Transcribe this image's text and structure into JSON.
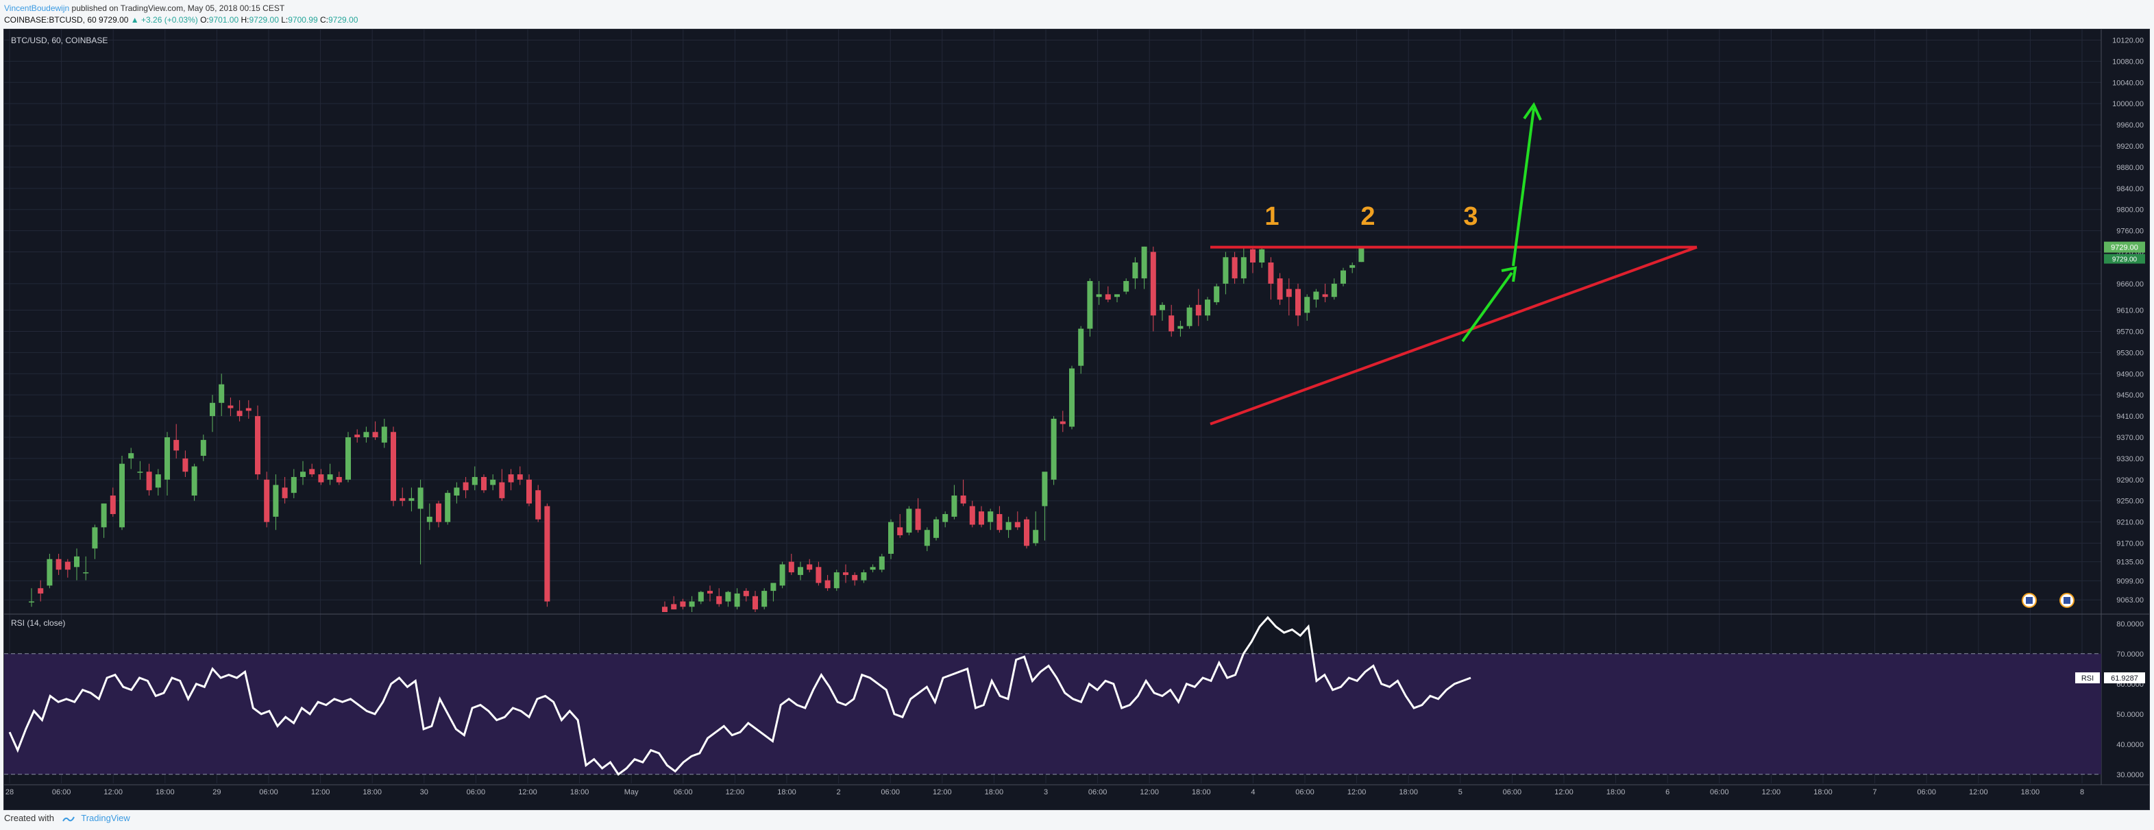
{
  "header": {
    "author": "VincentBoudewijn",
    "published_text": "published on TradingView.com, May 05, 2018 00:15 CEST",
    "symbol_line": "COINBASE:BTCUSD, 60",
    "last_price": "9729.00",
    "change": "+3.26 (+0.03%)",
    "o_label": "O:",
    "o_value": "9701.00",
    "h_label": "H:",
    "h_value": "9729.00",
    "l_label": "L:",
    "l_value": "9700.99",
    "c_label": "C:",
    "c_value": "9729.00"
  },
  "footer": {
    "created_with": "Created with",
    "brand": "TradingView"
  },
  "colors": {
    "background": "#131722",
    "up": "#5fb55f",
    "down": "#e0475a",
    "rsi_band": "#2a1e4a",
    "annotation_red": "#e0202e",
    "annotation_green": "#22dd22",
    "annotation_orange": "#f0a020",
    "grid": "#232838"
  },
  "chart_data": {
    "type": "candlestick",
    "price_pane": {
      "title": "BTC/USD, 60, COINBASE",
      "ylim": [
        9040,
        10140
      ],
      "y_ticks": [
        "10120.00",
        "10080.00",
        "10040.00",
        "10000.00",
        "9960.00",
        "9920.00",
        "9880.00",
        "9840.00",
        "9800.00",
        "9760.00",
        "9720.00",
        "9660.00",
        "9610.00",
        "9570.00",
        "9530.00",
        "9490.00",
        "9450.00",
        "9410.00",
        "9370.00",
        "9330.00",
        "9290.00",
        "9250.00",
        "9210.00",
        "9170.00",
        "9135.00",
        "9099.00",
        "9063.00"
      ],
      "y_tick_values": [
        10120,
        10080,
        10040,
        10000,
        9960,
        9920,
        9880,
        9840,
        9800,
        9760,
        9720,
        9660,
        9610,
        9570,
        9530,
        9490,
        9450,
        9410,
        9370,
        9330,
        9290,
        9250,
        9210,
        9170,
        9135,
        9099,
        9063
      ],
      "last_price_label": "9729.00",
      "secondary_price_label": "9729.00",
      "candles": [
        [
          9060,
          9085,
          9050,
          9060
        ],
        [
          9085,
          9100,
          9060,
          9075
        ],
        [
          9090,
          9150,
          9085,
          9140
        ],
        [
          9140,
          9150,
          9110,
          9120
        ],
        [
          9135,
          9140,
          9105,
          9120
        ],
        [
          9125,
          9160,
          9100,
          9145
        ],
        [
          9115,
          9145,
          9100,
          9115
        ],
        [
          9160,
          9205,
          9140,
          9200
        ],
        [
          9200,
          9245,
          9180,
          9245
        ],
        [
          9260,
          9275,
          9220,
          9225
        ],
        [
          9200,
          9335,
          9195,
          9320
        ],
        [
          9330,
          9350,
          9310,
          9340
        ],
        [
          9305,
          9325,
          9290,
          9305
        ],
        [
          9305,
          9320,
          9260,
          9270
        ],
        [
          9275,
          9310,
          9260,
          9300
        ],
        [
          9290,
          9380,
          9260,
          9370
        ],
        [
          9365,
          9395,
          9330,
          9345
        ],
        [
          9330,
          9345,
          9295,
          9305
        ],
        [
          9260,
          9320,
          9250,
          9315
        ],
        [
          9335,
          9375,
          9325,
          9365
        ],
        [
          9410,
          9450,
          9380,
          9435
        ],
        [
          9435,
          9490,
          9410,
          9470
        ],
        [
          9430,
          9445,
          9410,
          9425
        ],
        [
          9420,
          9440,
          9400,
          9410
        ],
        [
          9425,
          9440,
          9405,
          9420
        ],
        [
          9410,
          9430,
          9290,
          9300
        ],
        [
          9290,
          9305,
          9200,
          9210
        ],
        [
          9220,
          9300,
          9195,
          9280
        ],
        [
          9275,
          9295,
          9245,
          9255
        ],
        [
          9265,
          9310,
          9255,
          9295
        ],
        [
          9295,
          9325,
          9280,
          9305
        ],
        [
          9310,
          9320,
          9295,
          9300
        ],
        [
          9300,
          9310,
          9280,
          9285
        ],
        [
          9290,
          9320,
          9280,
          9300
        ],
        [
          9295,
          9305,
          9280,
          9285
        ],
        [
          9290,
          9380,
          9285,
          9370
        ],
        [
          9375,
          9385,
          9360,
          9370
        ],
        [
          9370,
          9390,
          9360,
          9380
        ],
        [
          9380,
          9400,
          9365,
          9370
        ],
        [
          9360,
          9405,
          9350,
          9390
        ],
        [
          9380,
          9390,
          9240,
          9250
        ],
        [
          9255,
          9275,
          9240,
          9250
        ],
        [
          9250,
          9275,
          9230,
          9255
        ],
        [
          9235,
          9290,
          9130,
          9275
        ],
        [
          9210,
          9245,
          9195,
          9220
        ],
        [
          9245,
          9250,
          9200,
          9210
        ],
        [
          9210,
          9270,
          9205,
          9265
        ],
        [
          9260,
          9285,
          9245,
          9275
        ],
        [
          9285,
          9295,
          9255,
          9270
        ],
        [
          9280,
          9315,
          9270,
          9295
        ],
        [
          9295,
          9300,
          9265,
          9270
        ],
        [
          9280,
          9300,
          9270,
          9290
        ],
        [
          9285,
          9310,
          9250,
          9255
        ],
        [
          9300,
          9310,
          9270,
          9285
        ],
        [
          9300,
          9315,
          9280,
          9290
        ],
        [
          9290,
          9300,
          9240,
          9245
        ],
        [
          9270,
          9280,
          9210,
          9215
        ],
        [
          9240,
          9245,
          9050,
          9060
        ]
      ],
      "candles_part2": [
        [
          9050,
          9060,
          9040,
          9040
        ],
        [
          9055,
          9070,
          9045,
          9045
        ],
        [
          9060,
          9065,
          9045,
          9050
        ],
        [
          9050,
          9070,
          9040,
          9060
        ],
        [
          9060,
          9080,
          9055,
          9078
        ],
        [
          9080,
          9090,
          9060,
          9075
        ],
        [
          9070,
          9085,
          9050,
          9055
        ],
        [
          9060,
          9080,
          9050,
          9078
        ],
        [
          9050,
          9085,
          9045,
          9075
        ],
        [
          9080,
          9085,
          9060,
          9070
        ],
        [
          9070,
          9080,
          9040,
          9045
        ],
        [
          9050,
          9085,
          9045,
          9080
        ],
        [
          9080,
          9095,
          9060,
          9095
        ],
        [
          9090,
          9135,
          9085,
          9130
        ],
        [
          9135,
          9150,
          9110,
          9115
        ],
        [
          9110,
          9135,
          9100,
          9125
        ],
        [
          9130,
          9140,
          9115,
          9120
        ],
        [
          9125,
          9135,
          9090,
          9095
        ],
        [
          9100,
          9110,
          9080,
          9085
        ],
        [
          9085,
          9120,
          9080,
          9115
        ],
        [
          9115,
          9130,
          9095,
          9110
        ],
        [
          9110,
          9115,
          9090,
          9100
        ],
        [
          9100,
          9120,
          9095,
          9115
        ],
        [
          9120,
          9130,
          9115,
          9125
        ],
        [
          9120,
          9150,
          9115,
          9145
        ],
        [
          9150,
          9215,
          9140,
          9210
        ],
        [
          9200,
          9225,
          9180,
          9185
        ],
        [
          9190,
          9240,
          9185,
          9235
        ],
        [
          9235,
          9255,
          9190,
          9195
        ],
        [
          9165,
          9200,
          9155,
          9195
        ],
        [
          9180,
          9220,
          9175,
          9215
        ],
        [
          9210,
          9230,
          9200,
          9225
        ],
        [
          9220,
          9280,
          9215,
          9260
        ],
        [
          9260,
          9290,
          9240,
          9245
        ],
        [
          9240,
          9250,
          9200,
          9205
        ],
        [
          9230,
          9240,
          9200,
          9205
        ],
        [
          9210,
          9235,
          9195,
          9230
        ],
        [
          9225,
          9240,
          9190,
          9195
        ],
        [
          9195,
          9220,
          9180,
          9210
        ],
        [
          9210,
          9230,
          9195,
          9200
        ],
        [
          9215,
          9220,
          9160,
          9165
        ],
        [
          9170,
          9230,
          9165,
          9195
        ],
        [
          9240,
          9300,
          9175,
          9305
        ],
        [
          9290,
          9410,
          9280,
          9405
        ],
        [
          9400,
          9420,
          9380,
          9395
        ],
        [
          9390,
          9505,
          9385,
          9500
        ],
        [
          9505,
          9580,
          9490,
          9575
        ],
        [
          9575,
          9670,
          9560,
          9665
        ],
        [
          9635,
          9665,
          9620,
          9640
        ],
        [
          9640,
          9655,
          9625,
          9630
        ],
        [
          9635,
          9640,
          9625,
          9640
        ],
        [
          9645,
          9670,
          9640,
          9665
        ],
        [
          9670,
          9710,
          9650,
          9700
        ],
        [
          9670,
          9730,
          9650,
          9730
        ],
        [
          9720,
          9730,
          9570,
          9600
        ],
        [
          9610,
          9625,
          9590,
          9620
        ],
        [
          9600,
          9620,
          9560,
          9570
        ],
        [
          9575,
          9590,
          9560,
          9580
        ],
        [
          9580,
          9620,
          9575,
          9615
        ],
        [
          9620,
          9650,
          9580,
          9600
        ],
        [
          9600,
          9635,
          9590,
          9630
        ],
        [
          9625,
          9660,
          9620,
          9655
        ],
        [
          9660,
          9720,
          9640,
          9710
        ],
        [
          9710,
          9720,
          9660,
          9670
        ],
        [
          9670,
          9730,
          9660,
          9710
        ],
        [
          9725,
          9730,
          9680,
          9700
        ],
        [
          9700,
          9730,
          9690,
          9725
        ],
        [
          9700,
          9710,
          9630,
          9660
        ],
        [
          9670,
          9680,
          9620,
          9630
        ],
        [
          9650,
          9670,
          9600,
          9635
        ],
        [
          9650,
          9660,
          9580,
          9600
        ],
        [
          9605,
          9640,
          9590,
          9635
        ],
        [
          9630,
          9650,
          9615,
          9645
        ],
        [
          9640,
          9660,
          9625,
          9635
        ],
        [
          9635,
          9670,
          9630,
          9660
        ],
        [
          9660,
          9690,
          9655,
          9685
        ],
        [
          9690,
          9700,
          9680,
          9695
        ],
        [
          9701,
          9729,
          9700.99,
          9729
        ]
      ]
    },
    "rsi_pane": {
      "title": "RSI (14, close)",
      "ylim": [
        27,
        82
      ],
      "y_ticks": [
        "80.0000",
        "70.0000",
        "60.0000",
        "50.0000",
        "40.0000",
        "30.0000"
      ],
      "y_tick_values": [
        80,
        70,
        60,
        50,
        40,
        30
      ],
      "band": [
        30,
        70
      ],
      "last_label": "RSI",
      "last_value": "61.9287",
      "values": [
        44,
        38,
        45,
        51,
        48,
        56,
        54,
        55,
        54,
        58,
        57,
        55,
        62,
        63,
        59,
        58,
        62,
        61,
        56,
        57,
        62,
        61,
        55,
        60,
        59,
        65,
        62,
        63,
        62,
        64,
        52,
        50,
        51,
        46,
        49,
        47,
        52,
        50,
        54,
        53,
        55,
        54,
        55,
        53,
        51,
        50,
        54,
        60,
        62,
        59,
        61,
        45,
        46,
        55,
        50,
        45,
        43,
        52,
        53,
        51,
        48,
        49,
        52,
        51,
        49,
        55,
        56,
        54,
        48,
        51,
        48,
        33,
        35,
        32,
        34,
        30,
        32,
        35,
        34,
        38,
        37,
        33,
        31,
        34,
        36,
        37,
        42,
        44,
        46,
        43,
        44,
        47,
        45,
        43,
        41,
        53,
        55,
        53,
        52,
        58,
        63,
        59,
        54,
        53,
        55,
        63,
        62,
        60,
        58,
        50,
        49,
        55,
        57,
        59,
        54,
        62,
        63,
        64,
        65,
        52,
        53,
        61,
        56,
        55,
        68,
        69,
        61,
        64,
        66,
        62,
        57,
        55,
        54,
        60,
        58,
        61,
        60,
        52,
        53,
        56,
        61,
        57,
        56,
        58,
        54,
        60,
        59,
        62,
        61,
        67,
        62,
        63,
        70,
        74,
        79,
        82,
        79,
        77,
        78,
        76,
        79,
        61,
        63,
        58,
        59,
        62,
        61,
        64,
        66,
        60,
        59,
        61,
        56,
        52,
        53,
        56,
        55,
        58,
        60,
        61,
        62
      ]
    },
    "x_axis": {
      "ticks": [
        "28",
        "06:00",
        "12:00",
        "18:00",
        "29",
        "06:00",
        "12:00",
        "18:00",
        "30",
        "06:00",
        "12:00",
        "18:00",
        "May",
        "06:00",
        "12:00",
        "18:00",
        "2",
        "06:00",
        "12:00",
        "18:00",
        "3",
        "06:00",
        "12:00",
        "18:00",
        "4",
        "06:00",
        "12:00",
        "18:00",
        "5",
        "06:00",
        "12:00",
        "18:00",
        "6",
        "06:00",
        "12:00",
        "18:00",
        "7",
        "06:00",
        "12:00",
        "18:00",
        "8"
      ],
      "interval": "60"
    },
    "annotations": {
      "pattern_labels": [
        "1",
        "2",
        "3"
      ],
      "resistance_level": 9729,
      "support_line": {
        "start_price": 9395,
        "end_price": 9729
      }
    }
  }
}
